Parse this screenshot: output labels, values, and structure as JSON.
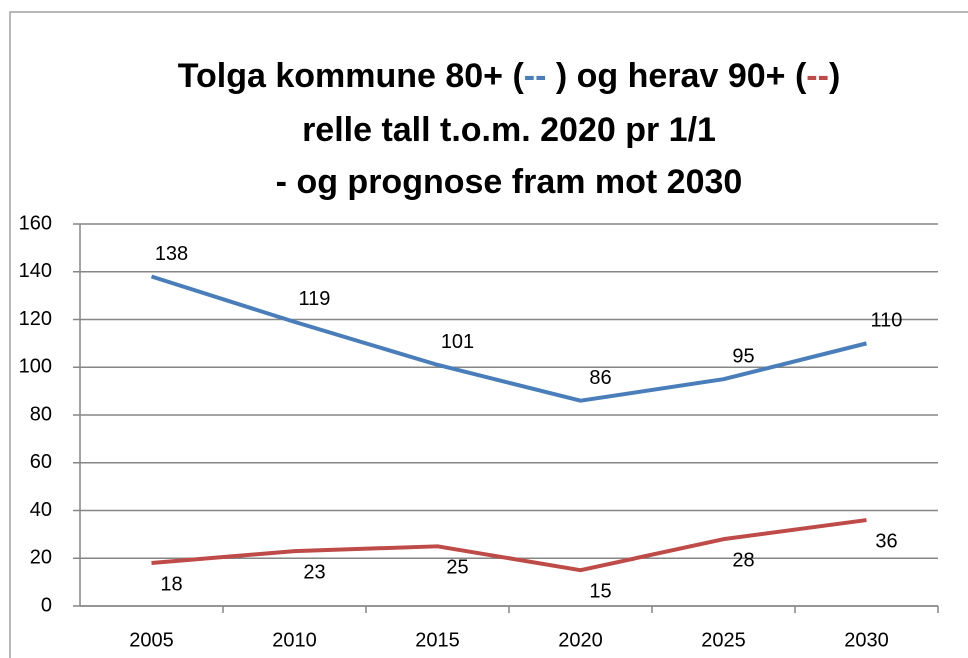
{
  "chart_data": {
    "type": "line",
    "title_line1": [
      "Tolga kommune 80+ (",
      "--",
      " )  og  herav 90+ (",
      "--",
      ")"
    ],
    "title_line2": "relle tall t.o.m. 2020 pr 1/1",
    "title_line3": "- og prognose fram mot 2030",
    "categories": [
      "2005",
      "2010",
      "2015",
      "2020",
      "2025",
      "2030"
    ],
    "series": [
      {
        "name": "80+",
        "color": "#4a7ebb",
        "values": [
          138,
          119,
          101,
          86,
          95,
          110
        ]
      },
      {
        "name": "90+",
        "color": "#be4b48",
        "values": [
          18,
          23,
          25,
          15,
          28,
          36
        ]
      }
    ],
    "ylim": [
      0,
      160
    ],
    "yticks": [
      0,
      20,
      40,
      60,
      80,
      100,
      120,
      140,
      160
    ],
    "grid": true
  }
}
